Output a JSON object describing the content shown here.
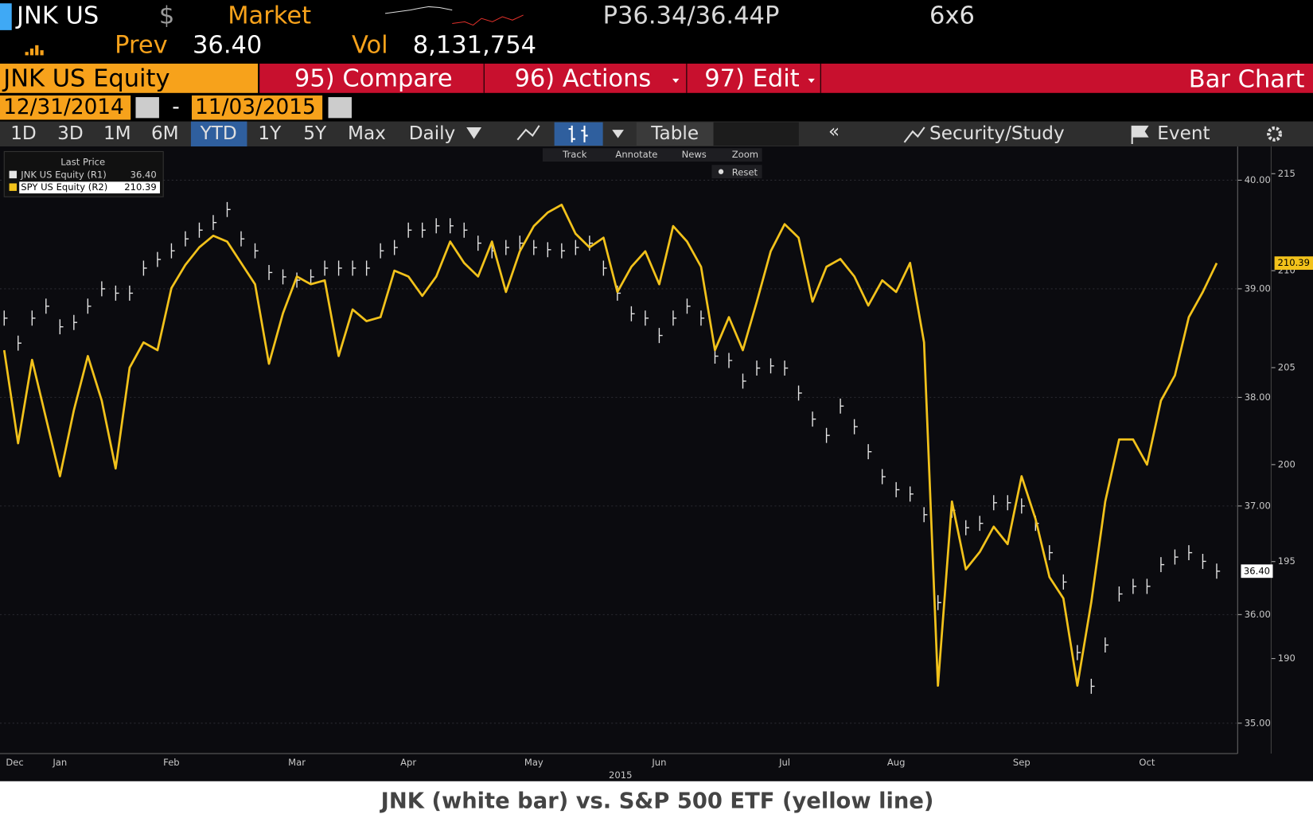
{
  "header": {
    "ticker": "JNK US",
    "currency": "$",
    "market": "Market",
    "quote": "P36.34/36.44P",
    "size": "6x6",
    "prev_label": "Prev",
    "prev": "36.40",
    "vol_label": "Vol",
    "vol": "8,131,754"
  },
  "menu": {
    "security": "JNK US Equity",
    "items": [
      "95) Compare",
      "96) Actions",
      "97) Edit"
    ],
    "view": "Bar Chart"
  },
  "range": {
    "start": "12/31/2014",
    "sep": "-",
    "end": "11/03/2015"
  },
  "tabs": [
    "1D",
    "3D",
    "1M",
    "6M",
    "YTD",
    "1Y",
    "5Y",
    "Max",
    "Daily"
  ],
  "toolbar": [
    "Table",
    "Security/Study",
    "Event"
  ],
  "chart_tools": [
    "Track",
    "Annotate",
    "News",
    "Zoom",
    "Reset"
  ],
  "caption": "JNK (white bar) vs. S&P 500 ETF (yellow line)",
  "chart_data": {
    "type": "combo",
    "legend_title": "Last Price",
    "x_label": "2015",
    "categories": [
      "Dec",
      null,
      null,
      null,
      "Jan",
      null,
      null,
      null,
      null,
      null,
      null,
      null,
      "Feb",
      null,
      null,
      null,
      null,
      null,
      null,
      null,
      null,
      "Mar",
      null,
      null,
      null,
      null,
      null,
      null,
      null,
      "Apr",
      null,
      null,
      null,
      null,
      null,
      null,
      null,
      null,
      "May",
      null,
      null,
      null,
      null,
      null,
      null,
      null,
      null,
      "Jun",
      null,
      null,
      null,
      null,
      null,
      null,
      null,
      null,
      "Jul",
      null,
      null,
      null,
      null,
      null,
      null,
      null,
      "Aug",
      null,
      null,
      null,
      null,
      null,
      null,
      null,
      null,
      "Sep",
      null,
      null,
      null,
      null,
      null,
      null,
      null,
      null,
      "Oct",
      null,
      null,
      null,
      null,
      null
    ],
    "series": [
      {
        "name": "JNK US Equity (R1)",
        "type": "bar",
        "axis": "y",
        "color": "#e6e6e6",
        "last_label": "36.40",
        "values": [
          38.73,
          38.5,
          38.73,
          38.84,
          38.65,
          38.69,
          38.84,
          39.0,
          38.96,
          38.96,
          39.19,
          39.27,
          39.35,
          39.46,
          39.54,
          39.61,
          39.73,
          39.46,
          39.35,
          39.15,
          39.11,
          39.08,
          39.11,
          39.19,
          39.19,
          39.19,
          39.19,
          39.35,
          39.38,
          39.54,
          39.54,
          39.58,
          39.58,
          39.54,
          39.42,
          39.35,
          39.38,
          39.42,
          39.38,
          39.36,
          39.35,
          39.38,
          39.42,
          39.19,
          38.96,
          38.77,
          38.73,
          38.57,
          38.73,
          38.84,
          38.73,
          38.38,
          38.34,
          38.15,
          38.27,
          38.29,
          38.27,
          38.04,
          37.8,
          37.65,
          37.92,
          37.73,
          37.5,
          37.27,
          37.15,
          37.11,
          36.92,
          36.11,
          36.96,
          36.8,
          36.84,
          37.03,
          37.03,
          37.0,
          36.84,
          36.57,
          36.3,
          35.65,
          35.34,
          35.72,
          36.19,
          36.26,
          36.26,
          36.46,
          36.53,
          36.57,
          36.49,
          36.4
        ]
      },
      {
        "name": "SPY US Equity (R2)",
        "type": "line",
        "axis": "y2",
        "color": "#f2c21b",
        "last_label": "210.39",
        "values": [
          205.9,
          201.1,
          205.4,
          202.4,
          199.4,
          202.8,
          205.6,
          203.3,
          199.8,
          205.0,
          206.3,
          205.9,
          209.1,
          210.3,
          211.2,
          211.8,
          211.5,
          210.4,
          209.3,
          205.2,
          207.8,
          209.7,
          209.3,
          209.5,
          205.6,
          208.0,
          207.4,
          207.6,
          210.0,
          209.7,
          208.7,
          209.7,
          211.5,
          210.4,
          209.7,
          211.5,
          208.9,
          211.0,
          212.3,
          213.0,
          213.4,
          211.9,
          211.2,
          211.7,
          208.9,
          210.2,
          211.0,
          209.3,
          212.3,
          211.5,
          210.2,
          205.9,
          207.6,
          205.9,
          208.4,
          211.0,
          212.4,
          211.7,
          208.4,
          210.2,
          210.6,
          209.7,
          208.2,
          209.5,
          208.9,
          210.4,
          206.3,
          188.6,
          198.1,
          194.6,
          195.5,
          196.8,
          195.9,
          199.4,
          197.2,
          194.2,
          193.1,
          188.6,
          192.9,
          198.1,
          201.3,
          201.3,
          200.0,
          203.3,
          204.6,
          207.6,
          208.9,
          210.39
        ]
      }
    ],
    "ylim": [
      34.72,
      40.31
    ],
    "yticks": [
      {
        "value": 35,
        "label": "35.00"
      },
      {
        "value": 36,
        "label": "36.00"
      },
      {
        "value": 37,
        "label": "37.00"
      },
      {
        "value": 38,
        "label": "38.00"
      },
      {
        "value": 39,
        "label": "39.00"
      },
      {
        "value": 40,
        "label": "40.00"
      }
    ],
    "y2lim": [
      185.1,
      216.4
    ],
    "y2ticks": [
      190,
      195,
      200,
      205,
      210,
      215
    ],
    "grid": true
  }
}
